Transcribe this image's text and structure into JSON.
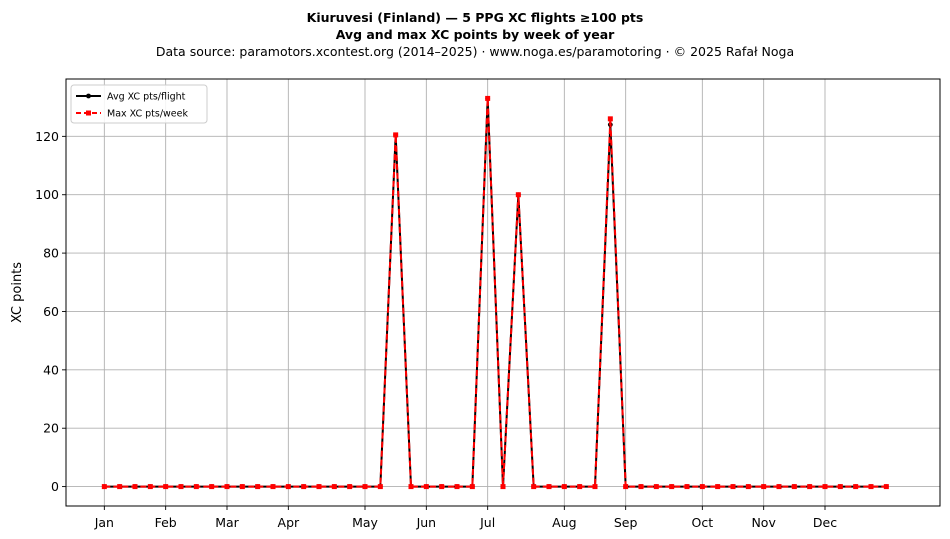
{
  "title_line1": "Kiuruvesi (Finland)  —  5 PPG XC flights ≥100 pts",
  "title_line2": "Avg and max XC points by week of year",
  "subtitle": "Data source: paramotors.xcontest.org (2014–2025)  ·  www.noga.es/paramotoring  ·  © 2025 Rafał Noga",
  "chart_data": {
    "type": "line",
    "ylabel": "XC points",
    "xlabel": "",
    "ylim": [
      -6.65,
      139.65
    ],
    "xlim": [
      -2.5,
      54.5
    ],
    "y_ticks": [
      0,
      20,
      40,
      60,
      80,
      100,
      120
    ],
    "x_ticks": [
      {
        "week": 0,
        "label": "Jan"
      },
      {
        "week": 4,
        "label": "Feb"
      },
      {
        "week": 8,
        "label": "Mar"
      },
      {
        "week": 12,
        "label": "Apr"
      },
      {
        "week": 17,
        "label": "May"
      },
      {
        "week": 21,
        "label": "Jun"
      },
      {
        "week": 25,
        "label": "Jul"
      },
      {
        "week": 30,
        "label": "Aug"
      },
      {
        "week": 34,
        "label": "Sep"
      },
      {
        "week": 39,
        "label": "Oct"
      },
      {
        "week": 43,
        "label": "Nov"
      },
      {
        "week": 47,
        "label": "Dec"
      }
    ],
    "grid": true,
    "legend_position": "top-left",
    "x": [
      0,
      1,
      2,
      3,
      4,
      5,
      6,
      7,
      8,
      9,
      10,
      11,
      12,
      13,
      14,
      15,
      16,
      17,
      18,
      19,
      20,
      21,
      22,
      23,
      24,
      25,
      26,
      27,
      28,
      29,
      30,
      31,
      32,
      33,
      34,
      35,
      36,
      37,
      38,
      39,
      40,
      41,
      42,
      43,
      44,
      45,
      46,
      47,
      48,
      49,
      50,
      51
    ],
    "series": [
      {
        "name": "Avg XC pts/flight",
        "color": "#000000",
        "style": "solid",
        "marker": "circle",
        "values": [
          0,
          0,
          0,
          0,
          0,
          0,
          0,
          0,
          0,
          0,
          0,
          0,
          0,
          0,
          0,
          0,
          0,
          0,
          0,
          120.5,
          0,
          0,
          0,
          0,
          0,
          133,
          0,
          100,
          0,
          0,
          0,
          0,
          0,
          124,
          0,
          0,
          0,
          0,
          0,
          0,
          0,
          0,
          0,
          0,
          0,
          0,
          0,
          0,
          0,
          0,
          0,
          0
        ]
      },
      {
        "name": "Max XC pts/week",
        "color": "#ff0000",
        "style": "dashed",
        "marker": "square",
        "values": [
          0,
          0,
          0,
          0,
          0,
          0,
          0,
          0,
          0,
          0,
          0,
          0,
          0,
          0,
          0,
          0,
          0,
          0,
          0,
          120.5,
          0,
          0,
          0,
          0,
          0,
          133,
          0,
          100,
          0,
          0,
          0,
          0,
          0,
          126,
          0,
          0,
          0,
          0,
          0,
          0,
          0,
          0,
          0,
          0,
          0,
          0,
          0,
          0,
          0,
          0,
          0,
          0
        ]
      }
    ]
  }
}
